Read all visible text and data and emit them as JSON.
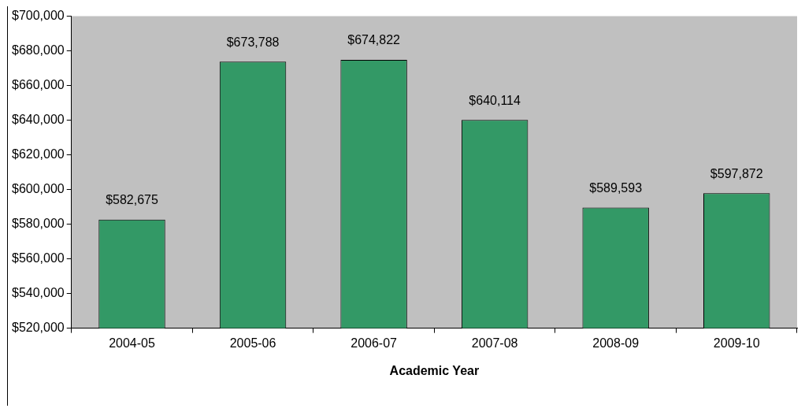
{
  "chart_data": {
    "type": "bar",
    "xlabel": "Academic Year",
    "categories": [
      "2004-05",
      "2005-06",
      "2006-07",
      "2007-08",
      "2008-09",
      "2009-10"
    ],
    "values": [
      582675,
      673788,
      674822,
      640114,
      589593,
      597872
    ],
    "color": "#339966",
    "ylim": [
      520000,
      700000
    ],
    "yticks": [
      {
        "value": 520000,
        "label": "$520,000"
      },
      {
        "value": 540000,
        "label": "$540,000"
      },
      {
        "value": 560000,
        "label": "$560,000"
      },
      {
        "value": 580000,
        "label": "$580,000"
      },
      {
        "value": 600000,
        "label": "$600,000"
      },
      {
        "value": 620000,
        "label": "$620,000"
      },
      {
        "value": 640000,
        "label": "$640,000"
      },
      {
        "value": 660000,
        "label": "$660,000"
      },
      {
        "value": 680000,
        "label": "$680,000"
      },
      {
        "value": 700000,
        "label": "$700,000"
      }
    ],
    "value_labels": [
      "$582,675",
      "$673,788",
      "$674,822",
      "$640,114",
      "$589,593",
      "$597,872"
    ],
    "grid": false,
    "legend": false
  }
}
